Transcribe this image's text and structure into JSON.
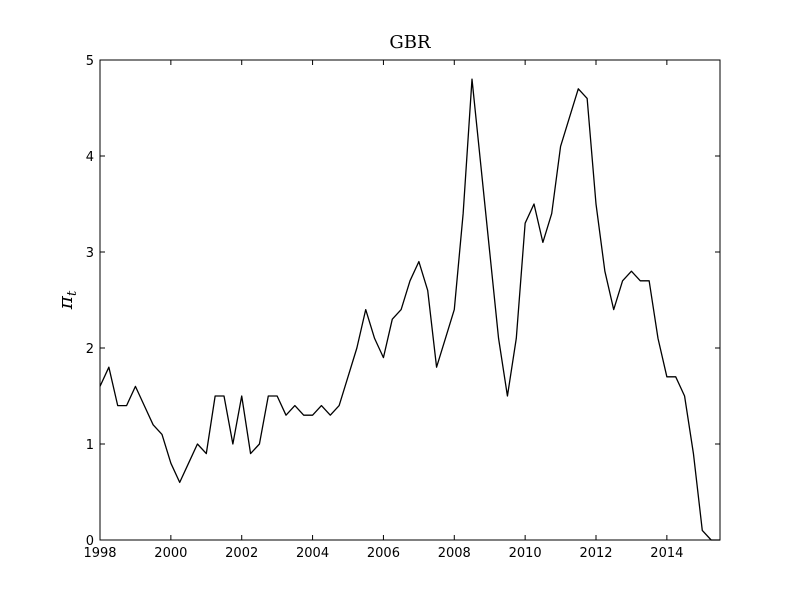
{
  "chart_data": {
    "type": "line",
    "title": "GBR",
    "xlabel": "",
    "ylabel": "π",
    "ylabel_subscript": "t",
    "xlim": [
      1998,
      2015.5
    ],
    "ylim": [
      0,
      5
    ],
    "grid": false,
    "legend": "none",
    "line_color": "#000000",
    "x_ticks": [
      1998,
      2000,
      2002,
      2004,
      2006,
      2008,
      2010,
      2012,
      2014
    ],
    "x_tick_labels": [
      "1998",
      "2000",
      "2002",
      "2004",
      "2006",
      "2008",
      "2010",
      "2012",
      "2014"
    ],
    "y_ticks": [
      0,
      1,
      2,
      3,
      4,
      5
    ],
    "y_tick_labels": [
      "0",
      "1",
      "2",
      "3",
      "4",
      "5"
    ],
    "series": [
      {
        "x": [
          1998.0,
          1998.25,
          1998.5,
          1998.75,
          1999.0,
          1999.25,
          1999.5,
          1999.75,
          2000.0,
          2000.25,
          2000.5,
          2000.75,
          2001.0,
          2001.25,
          2001.5,
          2001.75,
          2002.0,
          2002.25,
          2002.5,
          2002.75,
          2003.0,
          2003.25,
          2003.5,
          2003.75,
          2004.0,
          2004.25,
          2004.5,
          2004.75,
          2005.0,
          2005.25,
          2005.5,
          2005.75,
          2006.0,
          2006.25,
          2006.5,
          2006.75,
          2007.0,
          2007.25,
          2007.5,
          2007.75,
          2008.0,
          2008.25,
          2008.5,
          2008.75,
          2009.0,
          2009.25,
          2009.5,
          2009.75,
          2010.0,
          2010.25,
          2010.5,
          2010.75,
          2011.0,
          2011.25,
          2011.5,
          2011.75,
          2012.0,
          2012.25,
          2012.5,
          2012.75,
          2013.0,
          2013.25,
          2013.5,
          2013.75,
          2014.0,
          2014.25,
          2014.5,
          2014.75,
          2015.0,
          2015.25,
          2015.5
        ],
        "values": [
          1.6,
          1.8,
          1.4,
          1.4,
          1.6,
          1.4,
          1.2,
          1.1,
          0.8,
          0.6,
          0.8,
          1.0,
          0.9,
          1.5,
          1.5,
          1.0,
          1.5,
          0.9,
          1.0,
          1.5,
          1.5,
          1.3,
          1.4,
          1.3,
          1.3,
          1.4,
          1.3,
          1.4,
          1.7,
          2.0,
          2.4,
          2.1,
          1.9,
          2.3,
          2.4,
          2.7,
          2.9,
          2.6,
          1.8,
          2.1,
          2.4,
          3.4,
          4.8,
          3.9,
          3.0,
          2.1,
          1.5,
          2.1,
          3.3,
          3.5,
          3.1,
          3.4,
          4.1,
          4.4,
          4.7,
          4.6,
          3.5,
          2.8,
          2.4,
          2.7,
          2.8,
          2.7,
          2.7,
          2.1,
          1.7,
          1.7,
          1.5,
          0.9,
          0.1,
          0.0,
          0.0
        ]
      }
    ]
  }
}
